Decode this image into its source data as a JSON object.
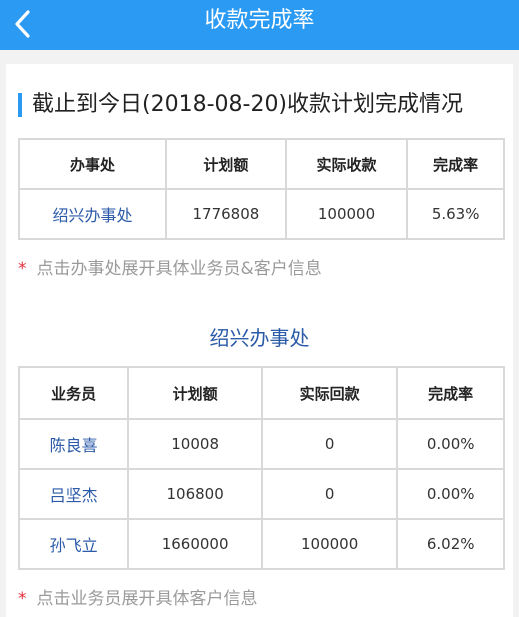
{
  "header": {
    "title": "收款完成率",
    "back_icon": "chevron-left-icon"
  },
  "summary": {
    "title": "截止到今日(2018-08-20)收款计划完成情况",
    "columns": [
      "办事处",
      "计划额",
      "实际收款",
      "完成率"
    ],
    "rows": [
      {
        "office": "绍兴办事处",
        "plan": "1776808",
        "actual": "100000",
        "rate": "5.63%"
      }
    ],
    "hint_star": "*",
    "hint": "点击办事处展开具体业务员&客户信息"
  },
  "detail": {
    "office_title": "绍兴办事处",
    "columns": [
      "业务员",
      "计划额",
      "实际回款",
      "完成率"
    ],
    "rows": [
      {
        "name": "陈良喜",
        "plan": "10008",
        "actual": "0",
        "rate": "0.00%"
      },
      {
        "name": "吕坚杰",
        "plan": "106800",
        "actual": "0",
        "rate": "0.00%"
      },
      {
        "name": "孙飞立",
        "plan": "1660000",
        "actual": "100000",
        "rate": "6.02%"
      }
    ],
    "hint_star": "*",
    "hint": "点击业务员展开具体客户信息"
  },
  "colors": {
    "accent": "#2b9af3",
    "link": "#2a5aa8",
    "hint": "#9a9a9a",
    "star": "#e0303a"
  }
}
